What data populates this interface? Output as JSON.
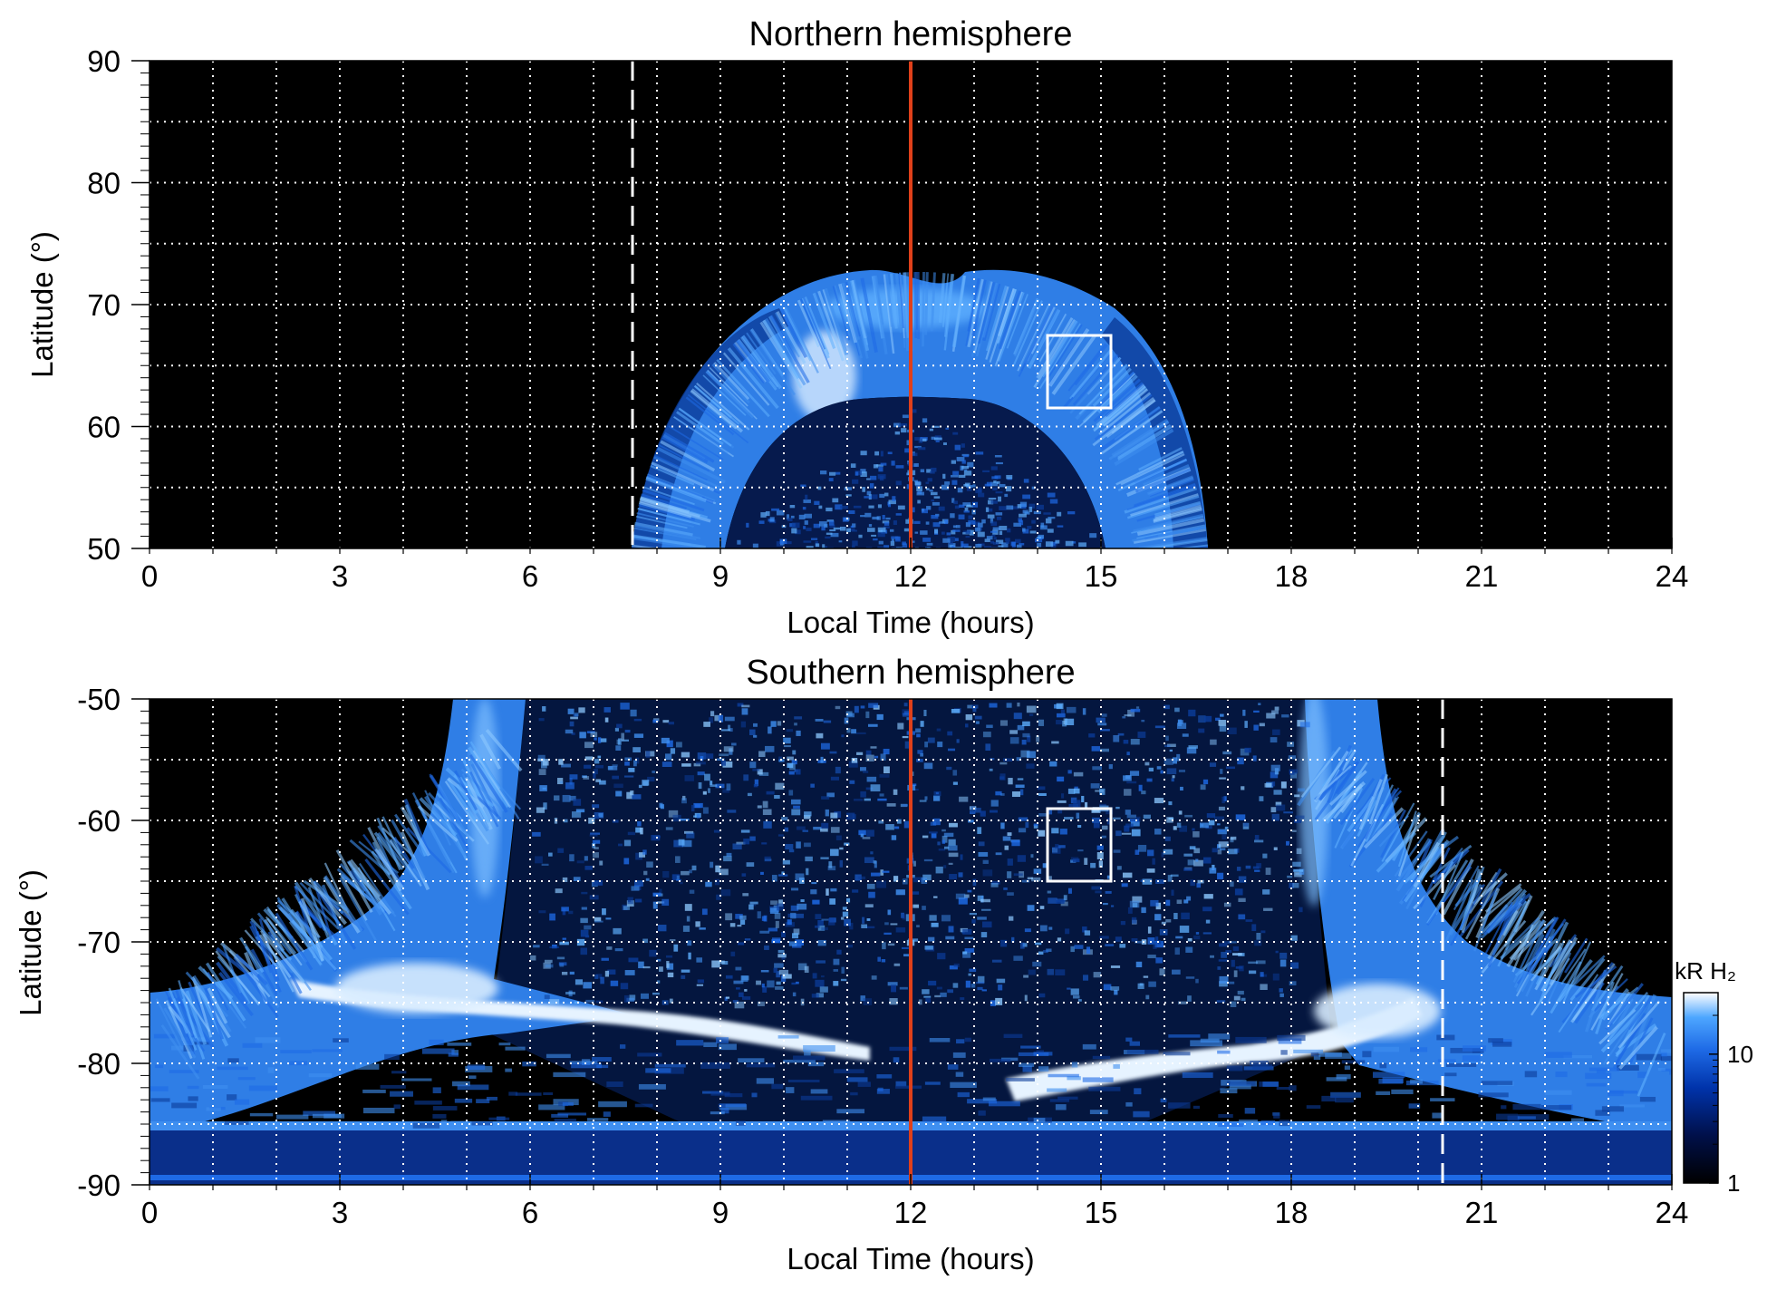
{
  "chart_data": [
    {
      "type": "heatmap",
      "title": "Northern hemisphere",
      "xlabel": "Local Time (hours)",
      "ylabel": "Latitude (°)",
      "xlim": [
        0,
        24
      ],
      "ylim": [
        50,
        90
      ],
      "xticks": [
        "0",
        "3",
        "6",
        "9",
        "12",
        "15",
        "18",
        "21",
        "24"
      ],
      "yticks": [
        "50",
        "60",
        "70",
        "80",
        "90"
      ],
      "grid": "dotted white, every 1 h and 5°",
      "noon_line_lt": 12,
      "dashed_line_lt": 7.6,
      "dashed_line_lat_range": [
        50,
        90
      ],
      "box": {
        "lt": [
          14.2,
          15.2
        ],
        "lat": [
          61.5,
          67.5
        ]
      },
      "oval": {
        "center_lt": 12,
        "half_width_lt": 4.7,
        "lat_outer_noon": 72.5,
        "lat_inner_noon": 62
      }
    },
    {
      "type": "heatmap",
      "title": "Southern hemisphere",
      "xlabel": "Local Time (hours)",
      "ylabel": "Latitude (°)",
      "xlim": [
        0,
        24
      ],
      "ylim": [
        -90,
        -50
      ],
      "xticks": [
        "0",
        "3",
        "6",
        "9",
        "12",
        "15",
        "18",
        "21",
        "24"
      ],
      "yticks": [
        "-90",
        "-80",
        "-70",
        "-60",
        "-50"
      ],
      "grid": "dotted white, every 1 h and 5°",
      "noon_line_lt": 12,
      "dashed_line_lt": 20.5,
      "dashed_line_lat_range": [
        -90,
        -50
      ],
      "box": {
        "lt": [
          14.2,
          15.2
        ],
        "lat": [
          -65,
          -59
        ]
      },
      "oval_band": [
        [
          0,
          -82
        ],
        [
          2,
          -79
        ],
        [
          4,
          -76
        ],
        [
          6,
          -75
        ],
        [
          8,
          -75.5
        ],
        [
          10,
          -76
        ],
        [
          11.5,
          -77
        ],
        [
          12.5,
          -79
        ],
        [
          14,
          -81
        ],
        [
          16,
          -80.5
        ],
        [
          18,
          -79.5
        ],
        [
          20,
          -78.5
        ],
        [
          22,
          -79
        ],
        [
          24,
          -81
        ]
      ]
    }
  ],
  "colorbar": {
    "label": "kR H₂",
    "scale": "log",
    "range": [
      1,
      30
    ],
    "ticks": [
      "1",
      "10"
    ],
    "colors": [
      "#000000",
      "#00104a",
      "#0033aa",
      "#1e6ae6",
      "#4da6ff",
      "#ffffff"
    ]
  },
  "colors": {
    "background": "#000000",
    "noon_line": "#e0401a",
    "grid": "#ffffff",
    "emission": "#3f8ff0",
    "bright": "#e6f3ff"
  }
}
